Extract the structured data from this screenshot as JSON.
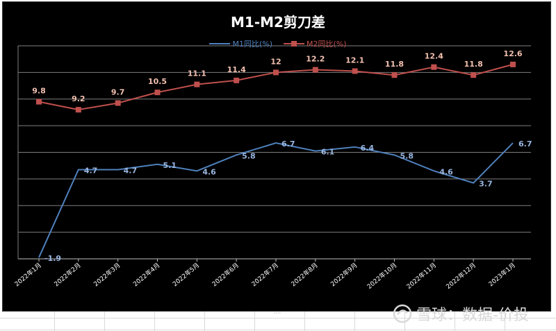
{
  "chart_data": {
    "type": "line",
    "title": "M1-M2剪刀差",
    "categories": [
      "2022年1月",
      "2022年2月",
      "2022年3月",
      "2022年4月",
      "2022年5月",
      "2022年6月",
      "2022年7月",
      "2022年8月",
      "2022年9月",
      "2022年10月",
      "2022年11月",
      "2022年12月",
      "2023年1月"
    ],
    "series": [
      {
        "name": "M1同比(%)",
        "color": "#4f81bd",
        "values": [
          -1.9,
          4.7,
          4.7,
          5.1,
          4.6,
          5.8,
          6.7,
          6.1,
          6.4,
          5.8,
          4.6,
          3.7,
          6.7
        ],
        "label_color": "#9ab6e0"
      },
      {
        "name": "M2同比(%)",
        "color": "#c0504d",
        "values": [
          9.8,
          9.2,
          9.7,
          10.5,
          11.1,
          11.4,
          12,
          12.2,
          12.1,
          11.8,
          12.4,
          11.8,
          12.6
        ],
        "label_color": "#f2c0b0"
      }
    ],
    "ylim": [
      -2,
      14
    ],
    "grid": true,
    "legend": "top-center"
  },
  "watermark": "雪球：数据-价投"
}
